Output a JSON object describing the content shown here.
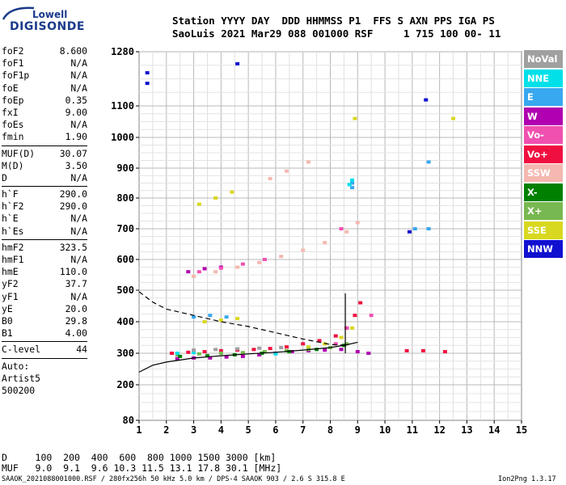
{
  "logo": {
    "line1": "Lowell",
    "line2": "DIGISONDE"
  },
  "header": {
    "row1": "Station YYYY DAY  DDD HHMMSS P1  FFS S AXN PPS IGA PS",
    "row2": "SaoLuis 2021 Mar29 088 001000 RSF     1 715 100 00- 11"
  },
  "params": {
    "group1": [
      [
        "foF2",
        "8.600"
      ],
      [
        "foF1",
        "N/A"
      ],
      [
        "foF1p",
        "N/A"
      ],
      [
        "foE",
        "N/A"
      ],
      [
        "foEp",
        "0.35"
      ],
      [
        "fxI",
        "9.00"
      ],
      [
        "foEs",
        "N/A"
      ],
      [
        "fmin",
        "1.90"
      ]
    ],
    "group2": [
      [
        "MUF(D)",
        "30.07"
      ],
      [
        "M(D)",
        "3.50"
      ],
      [
        "D",
        "N/A"
      ]
    ],
    "group3": [
      [
        "h`F",
        "290.0"
      ],
      [
        "h`F2",
        "290.0"
      ],
      [
        "h`E",
        "N/A"
      ],
      [
        "h`Es",
        "N/A"
      ]
    ],
    "group4": [
      [
        "hmF2",
        "323.5"
      ],
      [
        "hmF1",
        "N/A"
      ],
      [
        "hmE",
        "110.0"
      ],
      [
        "yF2",
        "37.7"
      ],
      [
        "yF1",
        "N/A"
      ],
      [
        "yE",
        "20.0"
      ],
      [
        "B0",
        "29.8"
      ],
      [
        "B1",
        "4.00"
      ]
    ],
    "group5": [
      [
        "C-level",
        "44"
      ]
    ],
    "auto": [
      "Auto:",
      "Artist5",
      "500200"
    ]
  },
  "legend": [
    {
      "label": "NoVal",
      "color": "#a0a0a0"
    },
    {
      "label": "NNE",
      "color": "#00e0e8"
    },
    {
      "label": "E",
      "color": "#38a8f0"
    },
    {
      "label": "W",
      "color": "#b000b0"
    },
    {
      "label": "Vo-",
      "color": "#f050b0"
    },
    {
      "label": "Vo+",
      "color": "#f01040"
    },
    {
      "label": "SSW",
      "color": "#f4b8b0"
    },
    {
      "label": "X-",
      "color": "#008000"
    },
    {
      "label": "X+",
      "color": "#78b850"
    },
    {
      "label": "SSE",
      "color": "#d8d820"
    },
    {
      "label": "NNW",
      "color": "#1010d0"
    }
  ],
  "footer": {
    "line1": "D     100  200  400  600  800 1000 1500 3000 [km]",
    "line2": "MUF   9.0  9.1  9.6 10.3 11.5 13.1 17.8 30.1 [MHz]",
    "bottom_left": "SAAOK_2021088001000.RSF / 280fx256h 50 kHz 5.0 km / DPS-4 SAAOK 903 / 2.6 S 315.8 E",
    "bottom_right": "Ion2Png 1.3.17"
  },
  "chart_data": {
    "type": "scatter",
    "title": "",
    "xlabel": "",
    "ylabel": "",
    "xlim": [
      1,
      15
    ],
    "ylim": [
      80,
      1280
    ],
    "x_ticks": [
      1,
      2,
      3,
      4,
      5,
      6,
      7,
      8,
      9,
      10,
      11,
      12,
      13,
      14,
      15
    ],
    "y_ticks": [
      80,
      200,
      300,
      400,
      500,
      600,
      700,
      800,
      900,
      1000,
      1100,
      1280
    ],
    "y_scale": "nonlinear",
    "grid": true,
    "series": [
      {
        "color": "#b000b0",
        "points": [
          [
            2.4,
            283
          ],
          [
            3.0,
            285
          ],
          [
            3.6,
            285
          ],
          [
            4.2,
            288
          ],
          [
            4.8,
            290
          ],
          [
            5.4,
            295
          ],
          [
            6.0,
            300
          ],
          [
            6.6,
            305
          ],
          [
            7.2,
            308
          ],
          [
            7.8,
            310
          ],
          [
            8.4,
            312
          ],
          [
            9.0,
            305
          ],
          [
            9.4,
            300
          ],
          [
            2.8,
            560
          ],
          [
            3.4,
            570
          ],
          [
            4.0,
            575
          ]
        ]
      },
      {
        "color": "#f01040",
        "points": [
          [
            2.2,
            300
          ],
          [
            2.8,
            303
          ],
          [
            3.4,
            305
          ],
          [
            4.0,
            308
          ],
          [
            4.6,
            310
          ],
          [
            5.2,
            312
          ],
          [
            5.8,
            315
          ],
          [
            6.4,
            320
          ],
          [
            7.0,
            330
          ],
          [
            7.6,
            340
          ],
          [
            8.2,
            355
          ],
          [
            8.6,
            380
          ],
          [
            8.9,
            420
          ],
          [
            9.1,
            460
          ],
          [
            10.8,
            308
          ],
          [
            11.4,
            308
          ],
          [
            12.2,
            305
          ]
        ]
      },
      {
        "color": "#f4b8b0",
        "points": [
          [
            3.0,
            545
          ],
          [
            3.8,
            560
          ],
          [
            4.6,
            575
          ],
          [
            5.4,
            590
          ],
          [
            6.2,
            610
          ],
          [
            7.0,
            630
          ],
          [
            7.8,
            655
          ],
          [
            8.6,
            690
          ],
          [
            9.0,
            720
          ],
          [
            5.8,
            865
          ],
          [
            6.4,
            890
          ],
          [
            7.2,
            920
          ]
        ]
      },
      {
        "color": "#d8d820",
        "points": [
          [
            3.2,
            780
          ],
          [
            3.8,
            800
          ],
          [
            4.4,
            820
          ],
          [
            3.4,
            400
          ],
          [
            4.0,
            405
          ],
          [
            4.6,
            410
          ],
          [
            7.2,
            320
          ],
          [
            7.8,
            330
          ],
          [
            8.4,
            350
          ],
          [
            8.8,
            380
          ],
          [
            8.9,
            1060
          ],
          [
            12.5,
            1060
          ]
        ]
      },
      {
        "color": "#78b850",
        "points": [
          [
            2.4,
            295
          ],
          [
            3.2,
            298
          ],
          [
            4.0,
            300
          ],
          [
            4.8,
            302
          ],
          [
            5.6,
            305
          ],
          [
            6.4,
            308
          ],
          [
            7.2,
            312
          ],
          [
            8.0,
            318
          ],
          [
            8.6,
            330
          ]
        ]
      },
      {
        "color": "#38a8f0",
        "points": [
          [
            3.0,
            415
          ],
          [
            3.6,
            420
          ],
          [
            4.2,
            415
          ],
          [
            8.8,
            850
          ],
          [
            8.8,
            835
          ],
          [
            11.1,
            700
          ],
          [
            11.6,
            700
          ],
          [
            11.6,
            920
          ]
        ]
      },
      {
        "color": "#00e0e8",
        "points": [
          [
            8.8,
            860
          ],
          [
            8.7,
            845
          ],
          [
            2.4,
            300
          ],
          [
            3.0,
            302
          ],
          [
            6.0,
            298
          ]
        ]
      },
      {
        "color": "#008000",
        "points": [
          [
            2.5,
            290
          ],
          [
            3.5,
            292
          ],
          [
            4.5,
            295
          ],
          [
            5.5,
            300
          ],
          [
            6.5,
            305
          ],
          [
            7.5,
            312
          ],
          [
            8.5,
            325
          ]
        ]
      },
      {
        "color": "#1010d0",
        "points": [
          [
            1.3,
            1210
          ],
          [
            1.3,
            1175
          ],
          [
            10.9,
            690
          ],
          [
            11.5,
            1120
          ],
          [
            4.6,
            1240
          ]
        ]
      },
      {
        "color": "#f050b0",
        "points": [
          [
            3.2,
            560
          ],
          [
            4.0,
            572
          ],
          [
            4.8,
            585
          ],
          [
            5.6,
            600
          ],
          [
            8.4,
            700
          ],
          [
            8.2,
            330
          ],
          [
            8.6,
            380
          ],
          [
            9.5,
            420
          ]
        ]
      },
      {
        "color": "#a0a0a0",
        "points": [
          [
            3.0,
            310
          ],
          [
            3.8,
            312
          ],
          [
            4.6,
            314
          ],
          [
            5.4,
            316
          ],
          [
            6.2,
            318
          ]
        ]
      }
    ],
    "curves": [
      {
        "style": "dashed",
        "points": [
          [
            1.0,
            495
          ],
          [
            1.5,
            462
          ],
          [
            2.0,
            440
          ],
          [
            3.0,
            420
          ],
          [
            4.0,
            400
          ],
          [
            5.0,
            385
          ],
          [
            6.0,
            365
          ],
          [
            7.0,
            345
          ],
          [
            8.0,
            328
          ],
          [
            8.6,
            325
          ]
        ]
      },
      {
        "style": "solid",
        "points": [
          [
            1.0,
            240
          ],
          [
            1.5,
            262
          ],
          [
            2.0,
            272
          ],
          [
            3.0,
            285
          ],
          [
            4.0,
            292
          ],
          [
            5.0,
            298
          ],
          [
            6.0,
            303
          ],
          [
            7.0,
            310
          ],
          [
            8.0,
            318
          ],
          [
            8.6,
            327
          ],
          [
            9.0,
            335
          ]
        ]
      },
      {
        "style": "solid",
        "points": [
          [
            8.55,
            490
          ],
          [
            8.55,
            300
          ]
        ]
      }
    ]
  }
}
